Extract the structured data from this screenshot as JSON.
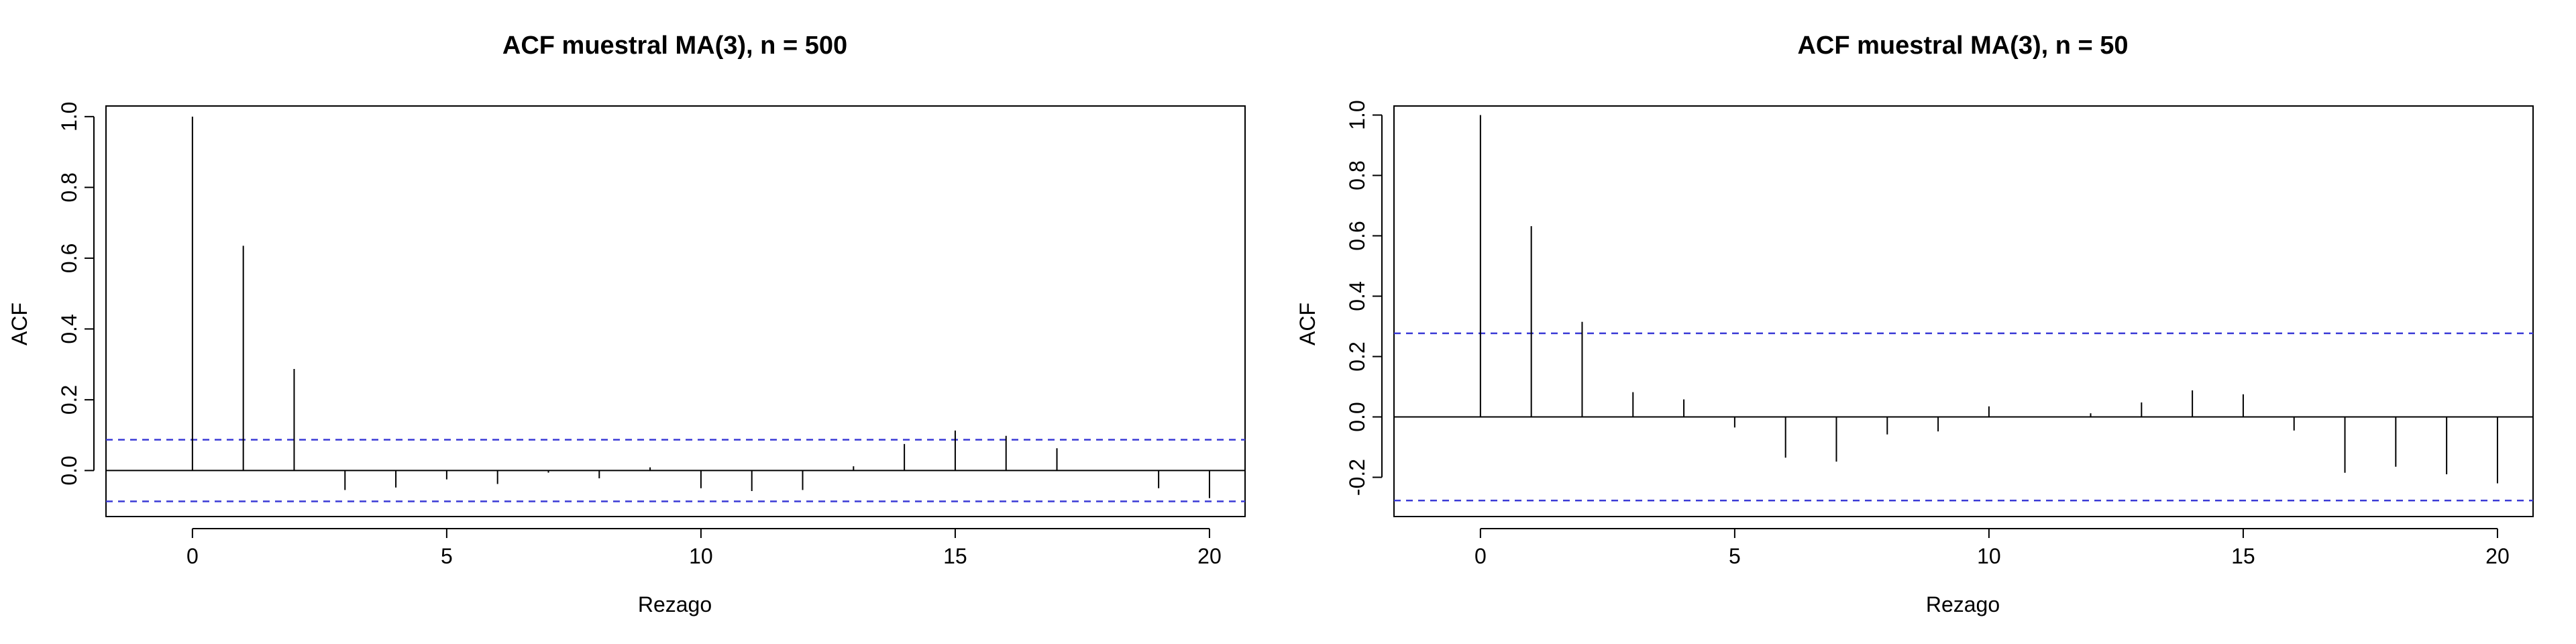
{
  "colors": {
    "confidence_band": "#3b3bd6",
    "spike": "#000000"
  },
  "chart_data": [
    {
      "type": "bar",
      "title": "ACF muestral MA(3), n = 500",
      "xlabel": "Rezago",
      "ylabel": "ACF",
      "x": [
        0,
        1,
        2,
        3,
        4,
        5,
        6,
        7,
        8,
        9,
        10,
        11,
        12,
        13,
        14,
        15,
        16,
        17,
        18,
        19,
        20
      ],
      "values": [
        1.0,
        0.635,
        0.287,
        -0.055,
        -0.048,
        -0.025,
        -0.038,
        -0.006,
        -0.022,
        0.009,
        -0.05,
        -0.058,
        -0.055,
        0.012,
        0.075,
        0.113,
        0.098,
        0.063,
        0.0,
        -0.05,
        -0.078
      ],
      "confidence_limit": 0.087,
      "xlim": [
        -1.7,
        20.7
      ],
      "ylim": [
        -0.13,
        1.03
      ],
      "xticks": [
        0,
        5,
        10,
        15,
        20
      ],
      "yticks": [
        0.0,
        0.2,
        0.4,
        0.6,
        0.8,
        1.0
      ],
      "ytick_labels": [
        "0.0",
        "0.2",
        "0.4",
        "0.6",
        "0.8",
        "1.0"
      ],
      "grid": false
    },
    {
      "type": "bar",
      "title": "ACF muestral MA(3), n = 50",
      "xlabel": "Rezago",
      "ylabel": "ACF",
      "x": [
        0,
        1,
        2,
        3,
        4,
        5,
        6,
        7,
        8,
        9,
        10,
        11,
        12,
        13,
        14,
        15,
        16,
        17,
        18,
        19,
        20
      ],
      "values": [
        1.0,
        0.632,
        0.315,
        0.082,
        0.058,
        -0.035,
        -0.135,
        -0.148,
        -0.058,
        -0.048,
        0.035,
        0.0,
        0.012,
        0.048,
        0.088,
        0.075,
        -0.045,
        -0.185,
        -0.165,
        -0.19,
        -0.22
      ],
      "confidence_limit": 0.277,
      "xlim": [
        -1.7,
        20.7
      ],
      "ylim": [
        -0.33,
        1.03
      ],
      "xticks": [
        0,
        5,
        10,
        15,
        20
      ],
      "yticks": [
        -0.2,
        0.0,
        0.2,
        0.4,
        0.6,
        0.8,
        1.0
      ],
      "ytick_labels": [
        "-0.2",
        "0.0",
        "0.2",
        "0.4",
        "0.6",
        "0.8",
        "1.0"
      ],
      "grid": false
    }
  ]
}
